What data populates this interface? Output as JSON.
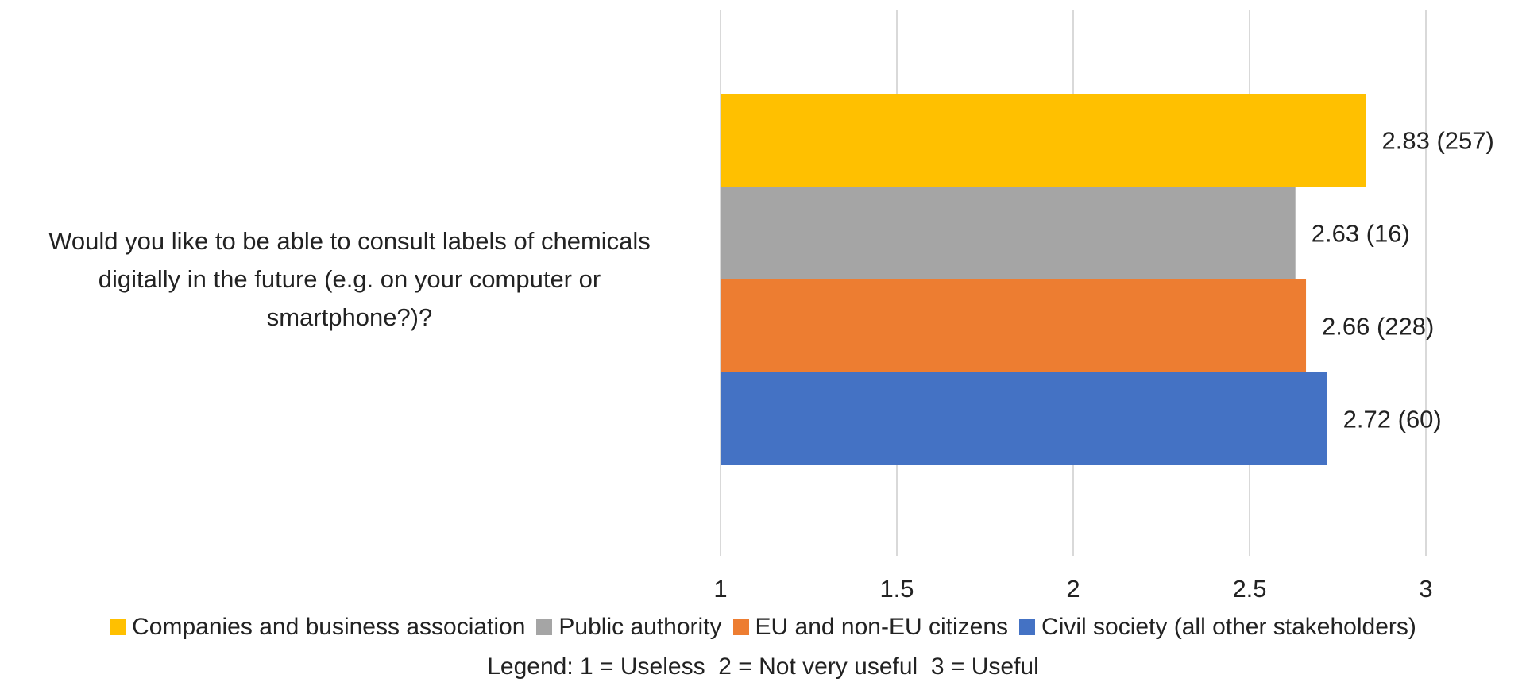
{
  "chart_data": {
    "type": "bar",
    "orientation": "horizontal",
    "title": "",
    "xlabel": "",
    "ylabel": "",
    "xlim": [
      1,
      3
    ],
    "x_ticks": [
      "1",
      "1.5",
      "2",
      "2.5",
      "3"
    ],
    "grid": "vertical",
    "legend_position": "bottom",
    "category_lines": [
      "Would you like to be able to consult labels of chemicals",
      "digitally in the future (e.g. on your computer or",
      "smartphone?)?"
    ],
    "series": [
      {
        "name": "Companies and business association",
        "value": 2.83,
        "label": "2.83 (257)",
        "color": "#FFC000"
      },
      {
        "name": "Public authority",
        "value": 2.63,
        "label": "2.63 (16)",
        "color": "#A5A5A5"
      },
      {
        "name": "EU and non-EU citizens",
        "value": 2.66,
        "label": "2.66 (228)",
        "color": "#ED7D31"
      },
      {
        "name": "Civil society (all other stakeholders)",
        "value": 2.72,
        "label": "2.72 (60)",
        "color": "#4472C4"
      }
    ],
    "note": "Legend: 1 = Useless  2 = Not very useful  3 = Useful"
  }
}
